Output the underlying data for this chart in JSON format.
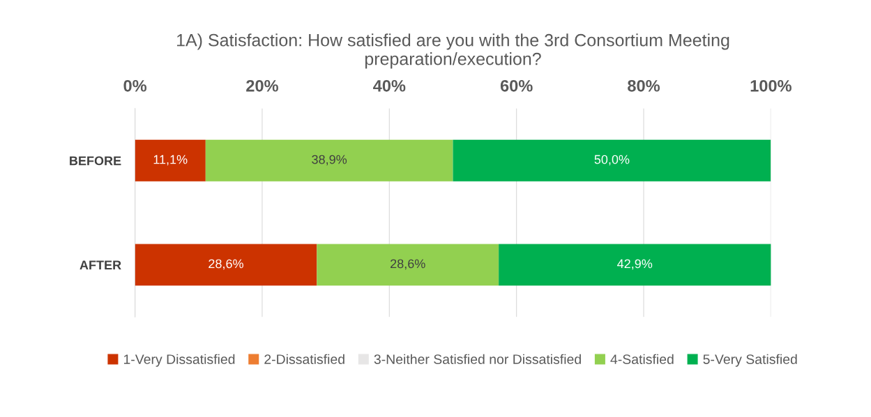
{
  "chart_data": {
    "type": "bar",
    "orientation": "horizontal",
    "stacked": true,
    "title": "1A) Satisfaction: How satisfied are you with the 3rd Consortium Meeting\npreparation/execution?",
    "categories": [
      "BEFORE",
      "AFTER"
    ],
    "series": [
      {
        "name": "1-Very Dissatisfied",
        "color": "#cc3300",
        "values": [
          11.1,
          28.6
        ],
        "value_labels": [
          "11,1%",
          "28,6%"
        ]
      },
      {
        "name": "2-Dissatisfied",
        "color": "#ed7d31",
        "values": [
          0,
          0
        ],
        "value_labels": [
          null,
          null
        ]
      },
      {
        "name": "3-Neither Satisfied nor Dissatisfied",
        "color": "#e7e6e6",
        "values": [
          0,
          0
        ],
        "value_labels": [
          null,
          null
        ]
      },
      {
        "name": "4-Satisfied",
        "color": "#92d050",
        "values": [
          38.9,
          28.6
        ],
        "value_labels": [
          "38,9%",
          "28,6%"
        ]
      },
      {
        "name": "5-Very Satisfied",
        "color": "#00b050",
        "values": [
          50.0,
          42.9
        ],
        "value_labels": [
          "50,0%",
          "42,9%"
        ]
      }
    ],
    "xlim": [
      0,
      100
    ],
    "xticks": [
      {
        "value": 0,
        "label": "0%"
      },
      {
        "value": 20,
        "label": "20%"
      },
      {
        "value": 40,
        "label": "40%"
      },
      {
        "value": 60,
        "label": "60%"
      },
      {
        "value": 80,
        "label": "80%"
      },
      {
        "value": 100,
        "label": "100%"
      }
    ],
    "grid": "x",
    "legend": "bottom"
  }
}
